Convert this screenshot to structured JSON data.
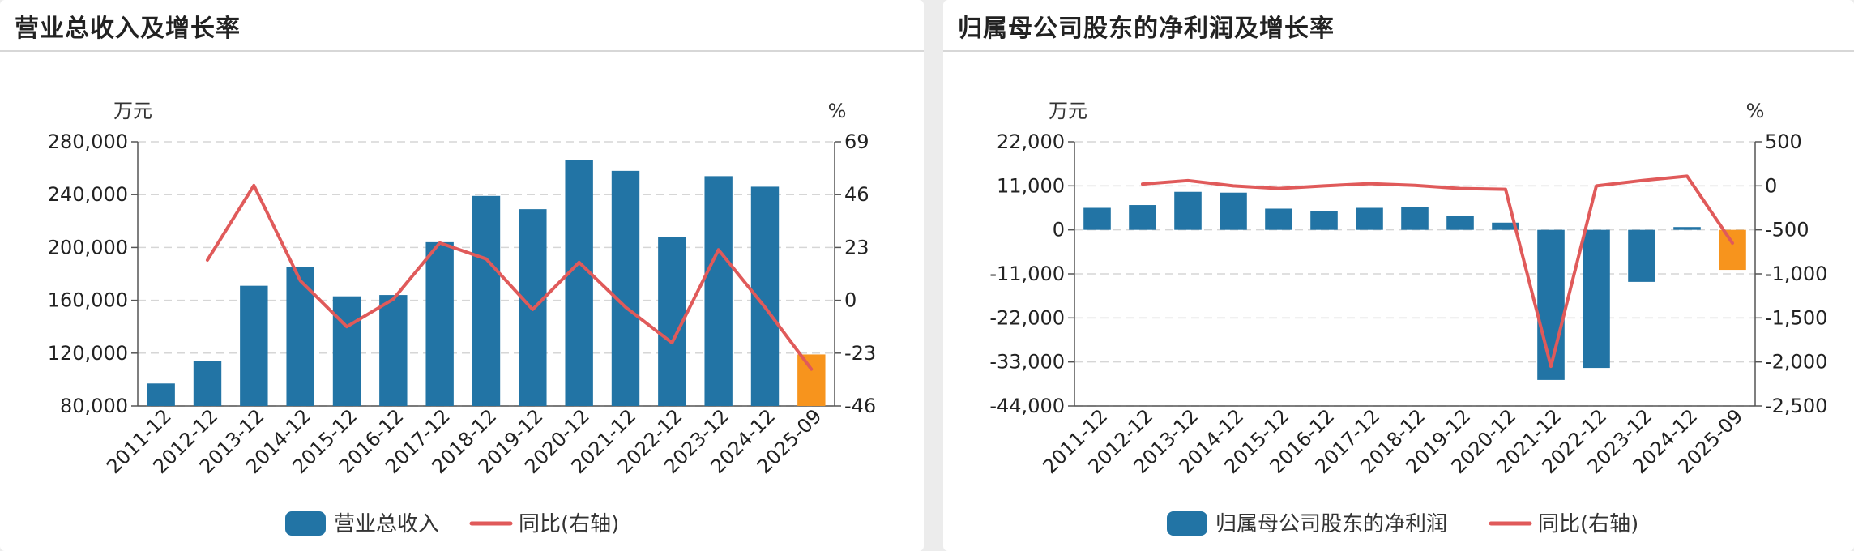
{
  "colors": {
    "bar": "#2274a5",
    "bar_highlight": "#f7941d",
    "line": "#e05a5a",
    "grid": "#d6d6d6",
    "axis": "#555555"
  },
  "chart_data": [
    {
      "type": "bar",
      "title": "营业总收入及增长率",
      "left_unit": "万元",
      "right_unit": "%",
      "categories": [
        "2011-12",
        "2012-12",
        "2013-12",
        "2014-12",
        "2015-12",
        "2016-12",
        "2017-12",
        "2018-12",
        "2019-12",
        "2020-12",
        "2021-12",
        "2022-12",
        "2023-12",
        "2024-12",
        "2025-09"
      ],
      "ylim": [
        80000,
        280000
      ],
      "yticks": [
        80000,
        120000,
        160000,
        200000,
        240000,
        280000
      ],
      "ytick_labels": [
        "80,000",
        "120,000",
        "160,000",
        "200,000",
        "240,000",
        "280,000"
      ],
      "y2lim": [
        -46,
        69
      ],
      "y2ticks": [
        -46,
        -23,
        0,
        23,
        46,
        69
      ],
      "y2tick_labels": [
        "-46",
        "-23",
        "0",
        "23",
        "46",
        "69"
      ],
      "series": [
        {
          "name": "营业总收入",
          "kind": "bar",
          "axis": "left",
          "values": [
            97000,
            114000,
            171000,
            185000,
            163000,
            164000,
            204000,
            239000,
            229000,
            266000,
            258000,
            208000,
            254000,
            246000,
            119000
          ],
          "highlight_last": true
        },
        {
          "name": "同比(右轴)",
          "kind": "line",
          "axis": "right",
          "values": [
            null,
            17.5,
            50.0,
            8.5,
            -11.5,
            0.5,
            25.0,
            18.0,
            -4.0,
            16.5,
            -3.0,
            -18.5,
            22.0,
            -3.0,
            -30.0
          ]
        }
      ],
      "legend": [
        "营业总收入",
        "同比(右轴)"
      ]
    },
    {
      "type": "bar",
      "title": "归属母公司股东的净利润及增长率",
      "left_unit": "万元",
      "right_unit": "%",
      "categories": [
        "2011-12",
        "2012-12",
        "2013-12",
        "2014-12",
        "2015-12",
        "2016-12",
        "2017-12",
        "2018-12",
        "2019-12",
        "2020-12",
        "2021-12",
        "2022-12",
        "2023-12",
        "2024-12",
        "2025-09"
      ],
      "ylim": [
        -44000,
        22000
      ],
      "yticks": [
        -44000,
        -33000,
        -22000,
        -11000,
        0,
        11000,
        22000
      ],
      "ytick_labels": [
        "-44,000",
        "-33,000",
        "-22,000",
        "-11,000",
        "0",
        "11,000",
        "22,000"
      ],
      "y2lim": [
        -2500,
        500
      ],
      "y2ticks": [
        -2500,
        -2000,
        -1500,
        -1000,
        -500,
        0,
        500
      ],
      "y2tick_labels": [
        "-2,500",
        "-2,000",
        "-1,500",
        "-1,000",
        "-500",
        "0",
        "500"
      ],
      "series": [
        {
          "name": "归属母公司股东的净利润",
          "kind": "bar",
          "axis": "left",
          "values": [
            5500,
            6200,
            9500,
            9300,
            5300,
            4600,
            5500,
            5600,
            3500,
            1800,
            -37500,
            -34500,
            -13000,
            700,
            -10000
          ],
          "highlight_last": true
        },
        {
          "name": "同比(右轴)",
          "kind": "line",
          "axis": "right",
          "values": [
            null,
            20,
            60,
            0,
            -30,
            0,
            25,
            5,
            -30,
            -40,
            -2050,
            0,
            60,
            110,
            -650
          ]
        }
      ],
      "legend": [
        "归属母公司股东的净利润",
        "同比(右轴)"
      ]
    }
  ]
}
